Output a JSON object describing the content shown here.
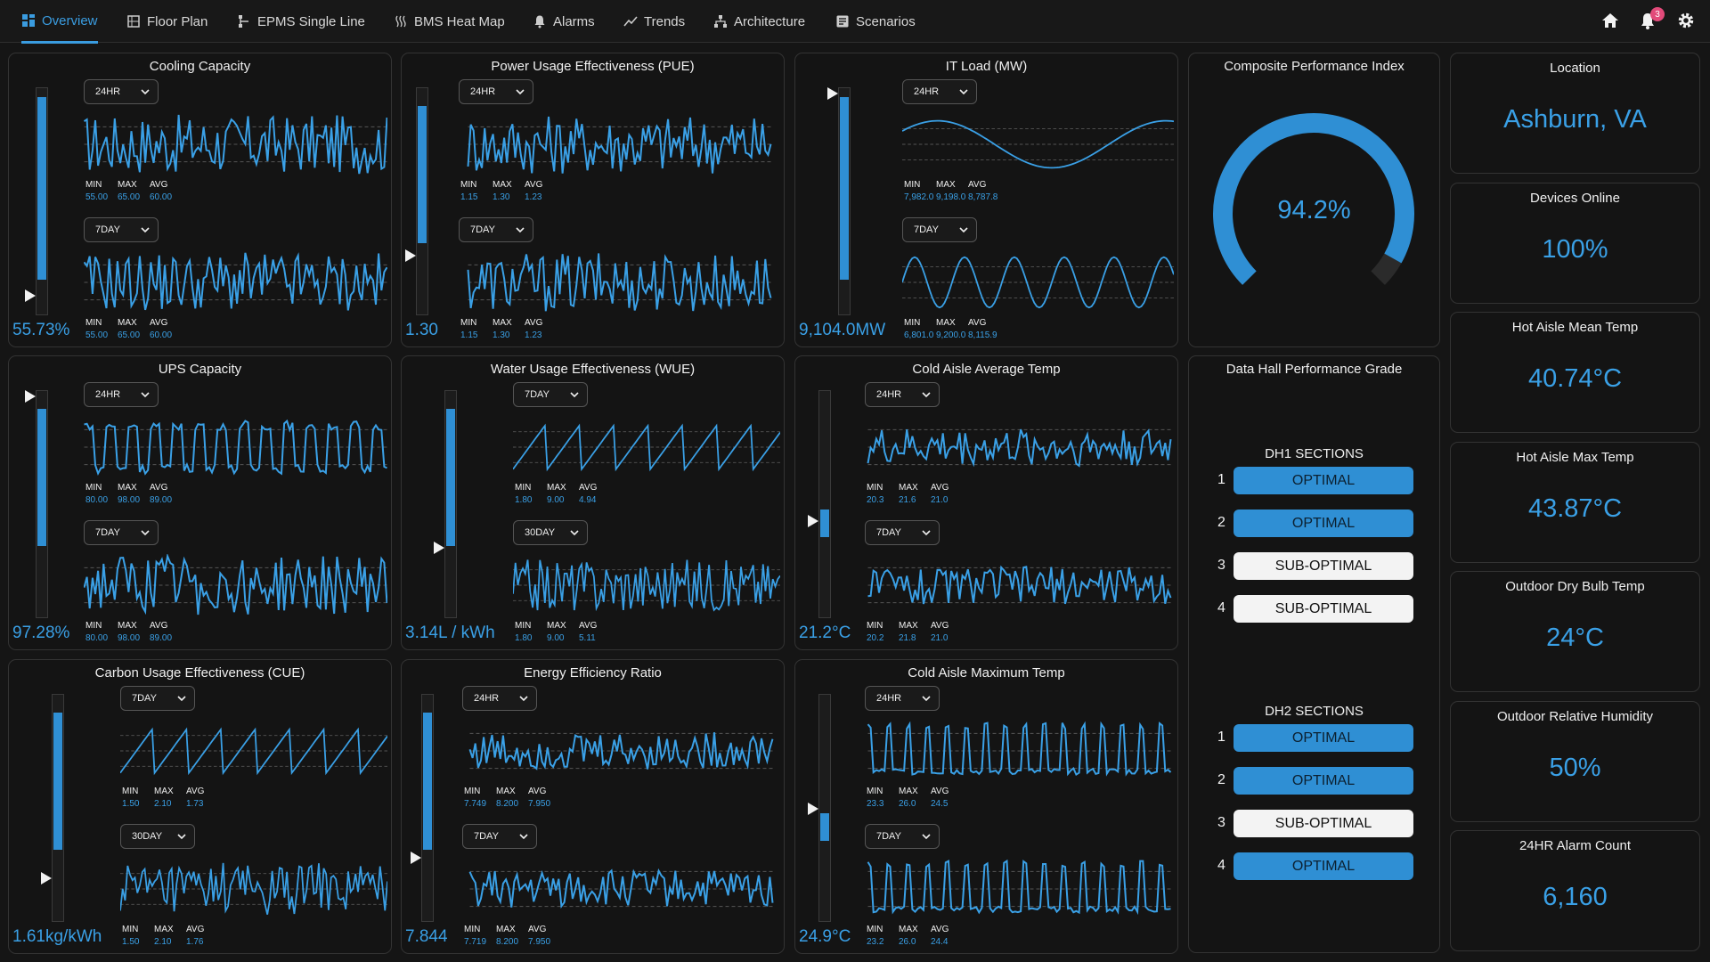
{
  "nav": {
    "tabs": [
      {
        "label": "Overview",
        "icon": "grid-icon"
      },
      {
        "label": "Floor Plan",
        "icon": "building-icon"
      },
      {
        "label": "EPMS Single Line",
        "icon": "single-line-icon"
      },
      {
        "label": "BMS Heat Map",
        "icon": "heat-icon"
      },
      {
        "label": "Alarms",
        "icon": "bell-icon"
      },
      {
        "label": "Trends",
        "icon": "trend-icon"
      },
      {
        "label": "Architecture",
        "icon": "hierarchy-icon"
      },
      {
        "label": "Scenarios",
        "icon": "scenarios-icon"
      }
    ],
    "notification_count": "3",
    "accent": "#3a9ce0"
  },
  "metrics": [
    {
      "title": "Cooling Capacity",
      "value": "55.73%",
      "level": 0.8,
      "c1": {
        "range": "24HR",
        "min": "55.00",
        "max": "65.00",
        "avg": "60.00"
      },
      "c2": {
        "range": "7DAY",
        "min": "55.00",
        "max": "65.00",
        "avg": "60.00"
      }
    },
    {
      "title": "Power Usage Effectiveness (PUE)",
      "value": "1.30",
      "level": 0.6,
      "c1": {
        "range": "24HR",
        "min": "1.15",
        "max": "1.30",
        "avg": "1.23"
      },
      "c2": {
        "range": "7DAY",
        "min": "1.15",
        "max": "1.30",
        "avg": "1.23"
      }
    },
    {
      "title": "IT Load (MW)",
      "value": "9,104.0MW",
      "level": 0.8,
      "c1": {
        "range": "24HR",
        "min": "7,982.0",
        "max": "9,198.0",
        "avg": "8,787.8"
      },
      "c2": {
        "range": "7DAY",
        "min": "6,801.0",
        "max": "9,200.0",
        "avg": "8,115.9"
      }
    },
    {
      "title": "UPS Capacity",
      "value": "97.28%",
      "level": 0.6,
      "c1": {
        "range": "24HR",
        "min": "80.00",
        "max": "98.00",
        "avg": "89.00"
      },
      "c2": {
        "range": "7DAY",
        "min": "80.00",
        "max": "98.00",
        "avg": "89.00"
      }
    },
    {
      "title": "Water Usage Effectiveness (WUE)",
      "value": "3.14L / kWh",
      "level": 0.6,
      "c1": {
        "range": "7DAY",
        "min": "1.80",
        "max": "9.00",
        "avg": "4.94"
      },
      "c2": {
        "range": "30DAY",
        "min": "1.80",
        "max": "9.00",
        "avg": "5.11"
      }
    },
    {
      "title": "Cold Aisle Average Temp",
      "value": "21.2°C",
      "level": 0.12,
      "c1": {
        "range": "24HR",
        "min": "20.3",
        "max": "21.6",
        "avg": "21.0"
      },
      "c2": {
        "range": "7DAY",
        "min": "20.2",
        "max": "21.8",
        "avg": "21.0"
      }
    },
    {
      "title": "Carbon Usage Effectiveness (CUE)",
      "value": "1.61kg/kWh",
      "level": 0.6,
      "c1": {
        "range": "7DAY",
        "min": "1.50",
        "max": "2.10",
        "avg": "1.73"
      },
      "c2": {
        "range": "30DAY",
        "min": "1.50",
        "max": "2.10",
        "avg": "1.76"
      }
    },
    {
      "title": "Energy Efficiency Ratio",
      "value": "7.844",
      "level": 0.6,
      "c1": {
        "range": "24HR",
        "min": "7.749",
        "max": "8.200",
        "avg": "7.950"
      },
      "c2": {
        "range": "7DAY",
        "min": "7.719",
        "max": "8.200",
        "avg": "7.950"
      }
    },
    {
      "title": "Cold Aisle Maximum Temp",
      "value": "24.9°C",
      "level": 0.12,
      "c1": {
        "range": "24HR",
        "min": "23.3",
        "max": "26.0",
        "avg": "24.5"
      },
      "c2": {
        "range": "7DAY",
        "min": "23.2",
        "max": "26.0",
        "avg": "24.4"
      }
    }
  ],
  "stat_labels": {
    "min": "MIN",
    "max": "MAX",
    "avg": "AVG"
  },
  "composite": {
    "title": "Composite Performance Index",
    "value": "94.2%",
    "fraction": 0.942
  },
  "grade": {
    "title": "Data Hall Performance Grade",
    "dh1": {
      "title": "DH1 SECTIONS",
      "rows": [
        {
          "num": "1",
          "status": "OPTIMAL"
        },
        {
          "num": "2",
          "status": "OPTIMAL"
        },
        {
          "num": "3",
          "status": "SUB-OPTIMAL"
        },
        {
          "num": "4",
          "status": "SUB-OPTIMAL"
        }
      ]
    },
    "dh2": {
      "title": "DH2 SECTIONS",
      "rows": [
        {
          "num": "1",
          "status": "OPTIMAL"
        },
        {
          "num": "2",
          "status": "OPTIMAL"
        },
        {
          "num": "3",
          "status": "SUB-OPTIMAL"
        },
        {
          "num": "4",
          "status": "OPTIMAL"
        }
      ]
    }
  },
  "kpis": [
    {
      "title": "Location",
      "value": "Ashburn, VA"
    },
    {
      "title": "Devices Online",
      "value": "100%"
    },
    {
      "title": "Hot Aisle Mean Temp",
      "value": "40.74°C"
    },
    {
      "title": "Hot Aisle Max Temp",
      "value": "43.87°C"
    },
    {
      "title": "Outdoor Dry Bulb Temp",
      "value": "24°C"
    },
    {
      "title": "Outdoor Relative Humidity",
      "value": "50%"
    },
    {
      "title": "24HR Alarm Count",
      "value": "6,160"
    }
  ],
  "colors": {
    "accent": "#3aa0e6",
    "bar": "#2f8fd4",
    "optimal": "#2f8fd4",
    "sub_optimal": "#f3f3f3"
  }
}
